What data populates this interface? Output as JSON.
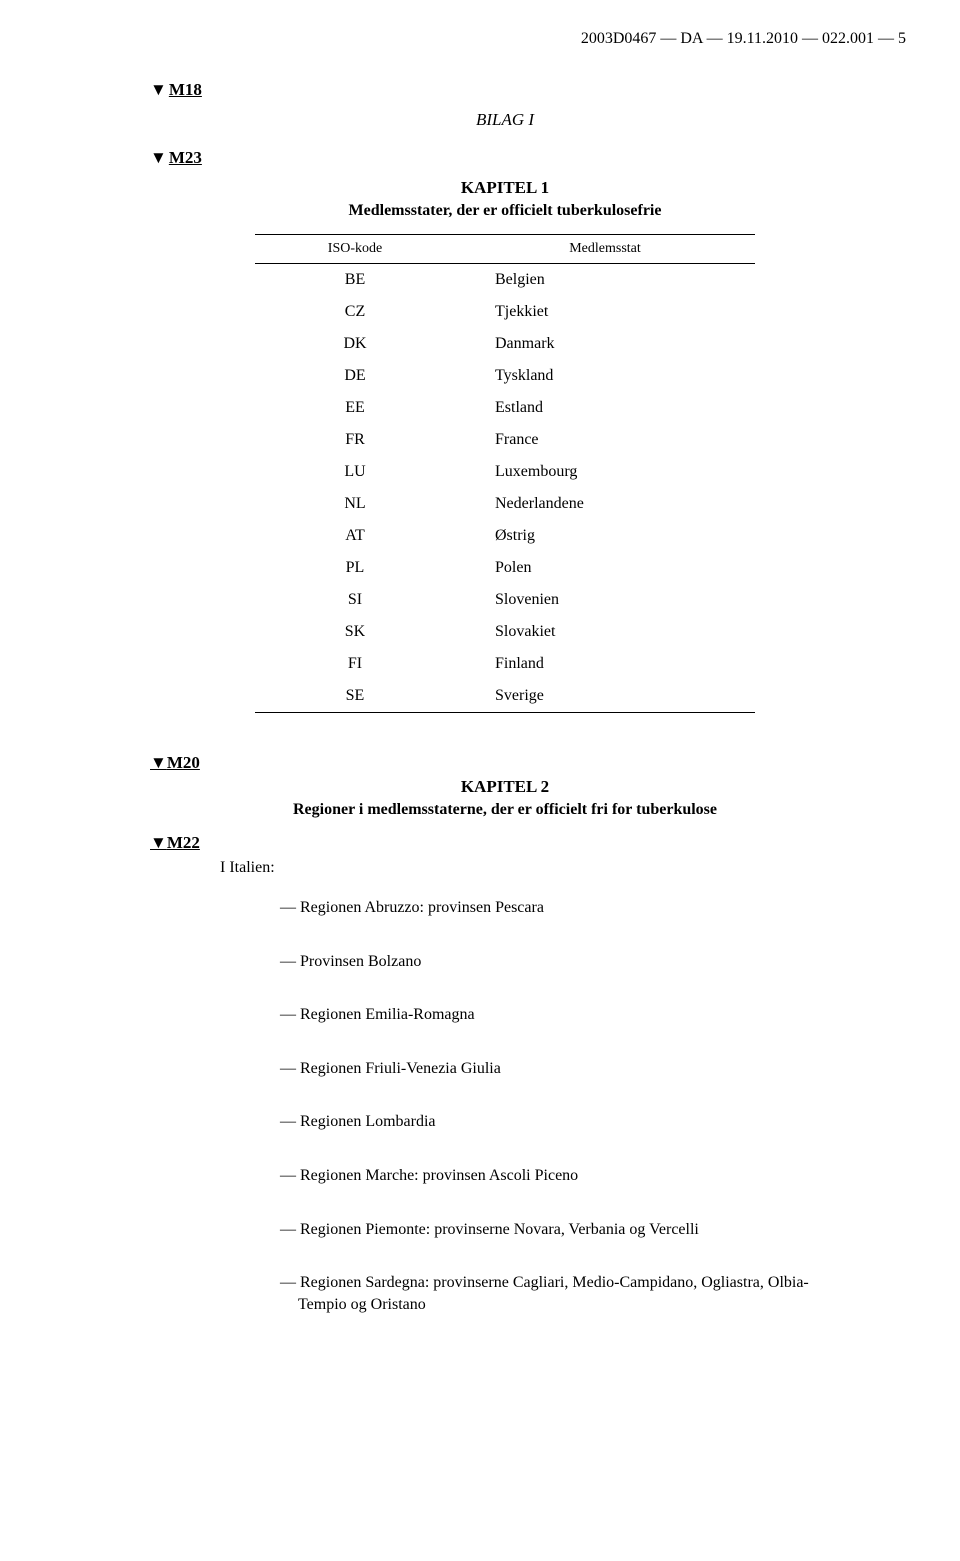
{
  "header": "2003D0467 — DA — 19.11.2010 — 022.001 — 5",
  "markers": {
    "m18": "M18",
    "m23": "M23",
    "m20": "M20",
    "m22": "M22",
    "triangle": "▼"
  },
  "annex": {
    "title": "BILAG I"
  },
  "chapter1": {
    "title": "KAPITEL 1",
    "subtitle": "Medlemsstater, der er officielt tuberkulosefrie",
    "col_iso": "ISO-kode",
    "col_state": "Medlemsstat",
    "rows": [
      {
        "code": "BE",
        "state": "Belgien"
      },
      {
        "code": "CZ",
        "state": "Tjekkiet"
      },
      {
        "code": "DK",
        "state": "Danmark"
      },
      {
        "code": "DE",
        "state": "Tyskland"
      },
      {
        "code": "EE",
        "state": "Estland"
      },
      {
        "code": "FR",
        "state": "France"
      },
      {
        "code": "LU",
        "state": "Luxembourg"
      },
      {
        "code": "NL",
        "state": "Nederlandene"
      },
      {
        "code": "AT",
        "state": "Østrig"
      },
      {
        "code": "PL",
        "state": "Polen"
      },
      {
        "code": "SI",
        "state": "Slovenien"
      },
      {
        "code": "SK",
        "state": "Slovakiet"
      },
      {
        "code": "FI",
        "state": "Finland"
      },
      {
        "code": "SE",
        "state": "Sverige"
      }
    ]
  },
  "chapter2": {
    "title": "KAPITEL 2",
    "subtitle": "Regioner i medlemsstaterne, der er officielt fri for tuberkulose",
    "italy_label": "I Italien:",
    "regions": [
      "Regionen Abruzzo: provinsen Pescara",
      "Provinsen Bolzano",
      "Regionen Emilia-Romagna",
      "Regionen Friuli-Venezia Giulia",
      "Regionen Lombardia",
      "Regionen Marche: provinsen Ascoli Piceno",
      "Regionen Piemonte: provinserne Novara, Verbania og Vercelli",
      "Regionen Sardegna: provinserne Cagliari, Medio-Campidano, Ogliastra, Olbia-Tempio og Oristano"
    ]
  },
  "colors": {
    "text": "#000000",
    "background": "#ffffff",
    "rule": "#000000"
  }
}
